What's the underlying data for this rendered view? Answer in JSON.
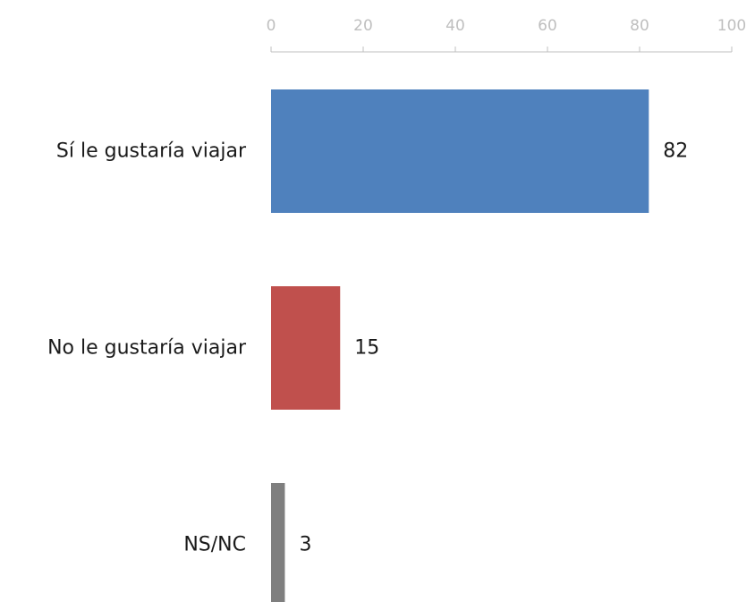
{
  "chart_data": {
    "type": "bar",
    "orientation": "horizontal",
    "categories": [
      "Sí le gustaría viajar",
      "No le gustaría viajar",
      "NS/NC"
    ],
    "values": [
      82,
      15,
      3
    ],
    "colors": [
      "#4f81bd",
      "#c0504d",
      "#7f7f7f"
    ],
    "xlim": [
      0,
      100
    ],
    "xticks": [
      0,
      20,
      40,
      60,
      80,
      100
    ],
    "axis_position": "top",
    "grid": false,
    "legend": "none",
    "data_labels": true
  }
}
